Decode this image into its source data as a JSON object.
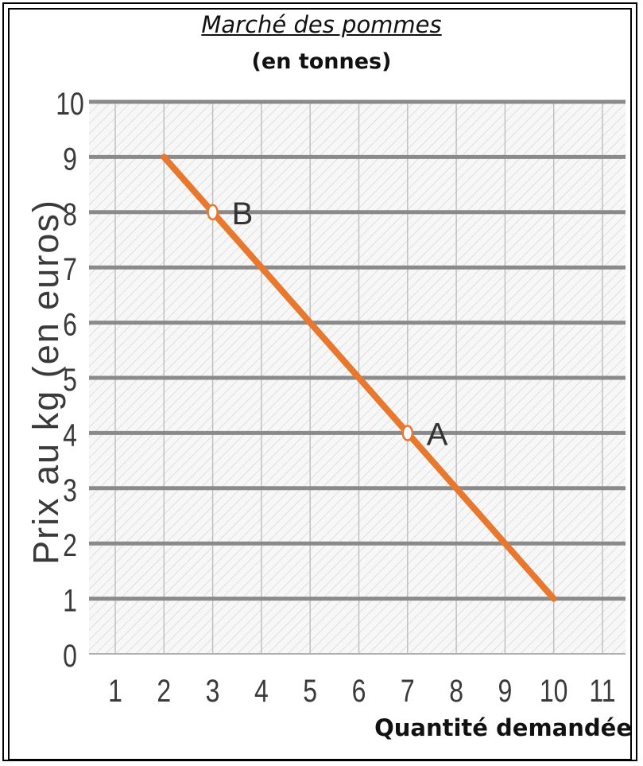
{
  "chart_data": {
    "type": "line",
    "title": "Marché des pommes",
    "subtitle": "(en tonnes)",
    "xlabel": "Quantité demandée",
    "ylabel": "Prix au kg (en euros)",
    "xlim": [
      0,
      11
    ],
    "ylim": [
      0,
      10
    ],
    "x_ticks": [
      "1",
      "2",
      "3",
      "4",
      "5",
      "6",
      "7",
      "8",
      "9",
      "10",
      "11"
    ],
    "y_ticks": [
      "0",
      "1",
      "2",
      "3",
      "4",
      "5",
      "6",
      "7",
      "8",
      "9",
      "10"
    ],
    "grid": true,
    "series": [
      {
        "x": [
          2,
          10
        ],
        "y": [
          9,
          1
        ],
        "color": "#e8782e"
      }
    ],
    "points": [
      {
        "label": "B",
        "x": 3,
        "y": 8
      },
      {
        "label": "A",
        "x": 7,
        "y": 4
      }
    ]
  }
}
